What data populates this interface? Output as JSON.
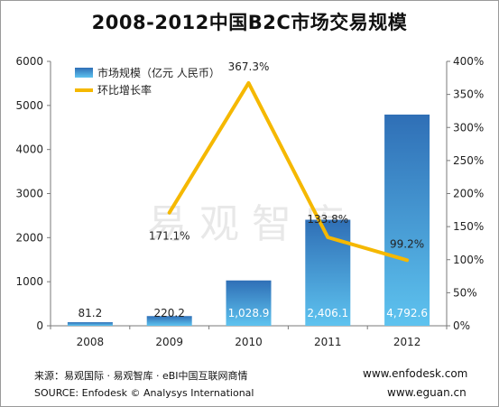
{
  "title": "2008-2012中国B2C市场交易规模",
  "footer": {
    "source_cn": "来源：易观国际 · 易观智库 · eBI中国互联网商情",
    "source_en": "SOURCE: Enfodesk © Analysys International",
    "url1": "www.enfodesk.com",
    "url2": "www.eguan.cn"
  },
  "watermark": "易观智库",
  "colors": {
    "bar_top": "#2f6fb6",
    "bar_bottom": "#5ec3ef",
    "line": "#f5b800",
    "axis": "#7a7a7a"
  },
  "chart_data": {
    "type": "bar",
    "categories": [
      "2008",
      "2009",
      "2010",
      "2011",
      "2012"
    ],
    "series": [
      {
        "name": "市场规模（亿元 人民币）",
        "type": "bar",
        "axis": "left",
        "values": [
          81.2,
          220.2,
          1028.9,
          2406.1,
          4792.6
        ],
        "labels": [
          "81.2",
          "220.2",
          "1,028.9",
          "2,406.1",
          "4,792.6"
        ]
      },
      {
        "name": "环比增长率",
        "type": "line",
        "axis": "right",
        "values": [
          null,
          171.1,
          367.3,
          133.8,
          99.2
        ],
        "labels": [
          null,
          "171.1%",
          "367.3%",
          "133.8%",
          "99.2%"
        ]
      }
    ],
    "y_left": {
      "range": [
        0,
        6000
      ],
      "ticks": [
        0,
        1000,
        2000,
        3000,
        4000,
        5000,
        6000
      ],
      "tick_labels": [
        "0",
        "1000",
        "2000",
        "3000",
        "4000",
        "5000",
        "6000"
      ]
    },
    "y_right": {
      "range": [
        0,
        400
      ],
      "ticks": [
        0,
        50,
        100,
        150,
        200,
        250,
        300,
        350,
        400
      ],
      "tick_labels": [
        "0%",
        "50%",
        "100%",
        "150%",
        "200%",
        "250%",
        "300%",
        "350%",
        "400%"
      ]
    },
    "legend": "top-left",
    "grid": false
  }
}
